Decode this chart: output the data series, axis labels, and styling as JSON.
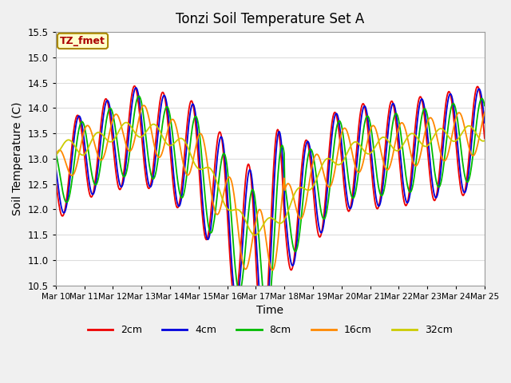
{
  "title": "Tonzi Soil Temperature Set A",
  "xlabel": "Time",
  "ylabel": "Soil Temperature (C)",
  "ylim": [
    10.5,
    15.5
  ],
  "annotation": "TZ_fmet",
  "series": {
    "2cm": {
      "color": "#ee0000",
      "linewidth": 1.3
    },
    "4cm": {
      "color": "#0000dd",
      "linewidth": 1.3
    },
    "8cm": {
      "color": "#00bb00",
      "linewidth": 1.3
    },
    "16cm": {
      "color": "#ff8800",
      "linewidth": 1.3
    },
    "32cm": {
      "color": "#cccc00",
      "linewidth": 1.3
    }
  },
  "xtick_labels": [
    "Mar 10",
    "Mar 11",
    "Mar 12",
    "Mar 13",
    "Mar 14",
    "Mar 15",
    "Mar 16",
    "Mar 17",
    "Mar 18",
    "Mar 19",
    "Mar 20",
    "Mar 21",
    "Mar 22",
    "Mar 23",
    "Mar 24",
    "Mar 25"
  ],
  "bg_color": "#f0f0f0",
  "plot_bg": "#ffffff",
  "grid_color": "#dddddd",
  "legend_items": [
    "2cm",
    "4cm",
    "8cm",
    "16cm",
    "32cm"
  ],
  "legend_colors": [
    "#ee0000",
    "#0000dd",
    "#00bb00",
    "#ff8800",
    "#cccc00"
  ]
}
